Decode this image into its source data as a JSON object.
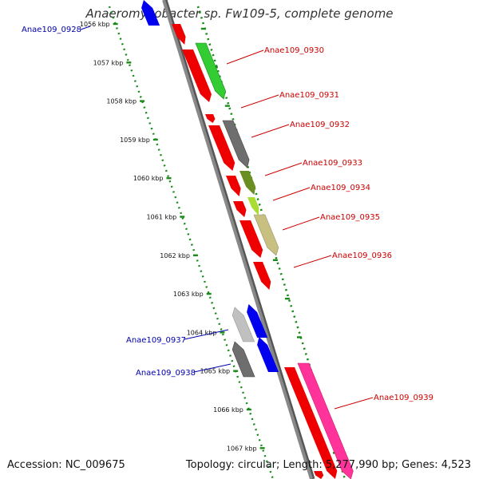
{
  "title": "Anaeromyxobacter sp. Fw109-5, complete genome",
  "footer": {
    "accession": "Accession: NC_009675",
    "summary": "Topology: circular; Length: 5,277,990 bp; Genes: 4,523"
  },
  "colors": {
    "backbone": "#888888",
    "ruler": "#1a8a1a",
    "forward_label": "#cc0000",
    "reverse_label": "#0000aa"
  },
  "kbp_marks": [
    "1056 kbp",
    "1057 kbp",
    "1058 kbp",
    "1059 kbp",
    "1060 kbp",
    "1061 kbp",
    "1062 kbp",
    "1063 kbp",
    "1064 kbp",
    "1065 kbp",
    "1066 kbp",
    "1067 kbp"
  ],
  "gene_labels": [
    {
      "text": "Anae109_0928",
      "color": "#0000aa"
    },
    {
      "text": "Anae109_0930",
      "color": "#cc0000"
    },
    {
      "text": "Anae109_0931",
      "color": "#cc0000"
    },
    {
      "text": "Anae109_0932",
      "color": "#cc0000"
    },
    {
      "text": "Anae109_0933",
      "color": "#cc0000"
    },
    {
      "text": "Anae109_0934",
      "color": "#cc0000"
    },
    {
      "text": "Anae109_0935",
      "color": "#cc0000"
    },
    {
      "text": "Anae109_0936",
      "color": "#cc0000"
    },
    {
      "text": "Anae109_0937",
      "color": "#0000aa"
    },
    {
      "text": "Anae109_0938",
      "color": "#0000aa"
    },
    {
      "text": "Anae109_0939",
      "color": "#cc0000"
    }
  ]
}
